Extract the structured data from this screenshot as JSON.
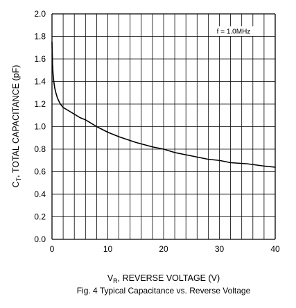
{
  "chart_data": {
    "type": "line",
    "caption": "Fig. 4  Typical Capacitance vs. Reverse Voltage",
    "xlabel": {
      "main": "V",
      "sub": "R",
      "rest": ", REVERSE VOLTAGE (V)"
    },
    "ylabel": {
      "main": "C",
      "sub": "T",
      "rest": ", TOTAL CAPACITANCE (pF)"
    },
    "annotation": "f = 1.0MHz",
    "xlim": [
      0,
      40
    ],
    "ylim": [
      0,
      2.0
    ],
    "x_ticks": [
      0,
      10,
      20,
      30,
      40
    ],
    "x_tick_labels": [
      "0",
      "10",
      "20",
      "30",
      "40"
    ],
    "y_ticks": [
      0,
      0.2,
      0.4,
      0.6,
      0.8,
      1.0,
      1.2,
      1.4,
      1.6,
      1.8,
      2.0
    ],
    "y_tick_labels": [
      "0.0",
      "0.2",
      "0.4",
      "0.6",
      "0.8",
      "1.0",
      "1.2",
      "1.4",
      "1.6",
      "1.8",
      "2.0"
    ],
    "grid": true,
    "x_minor_step": 2,
    "series": [
      {
        "x": [
          0,
          0.1,
          0.2,
          0.35,
          0.5,
          0.75,
          1,
          1.5,
          2,
          3,
          4,
          5,
          6,
          8,
          10,
          12,
          15,
          18,
          20,
          22,
          25,
          28,
          30,
          32,
          35,
          38,
          40
        ],
        "y": [
          1.75,
          1.55,
          1.46,
          1.39,
          1.34,
          1.29,
          1.25,
          1.2,
          1.17,
          1.14,
          1.11,
          1.08,
          1.06,
          1.0,
          0.95,
          0.91,
          0.86,
          0.82,
          0.8,
          0.77,
          0.74,
          0.71,
          0.7,
          0.68,
          0.67,
          0.65,
          0.64
        ]
      }
    ],
    "colors": {
      "line": "#000000",
      "grid": "#000000",
      "background": "#ffffff"
    }
  }
}
